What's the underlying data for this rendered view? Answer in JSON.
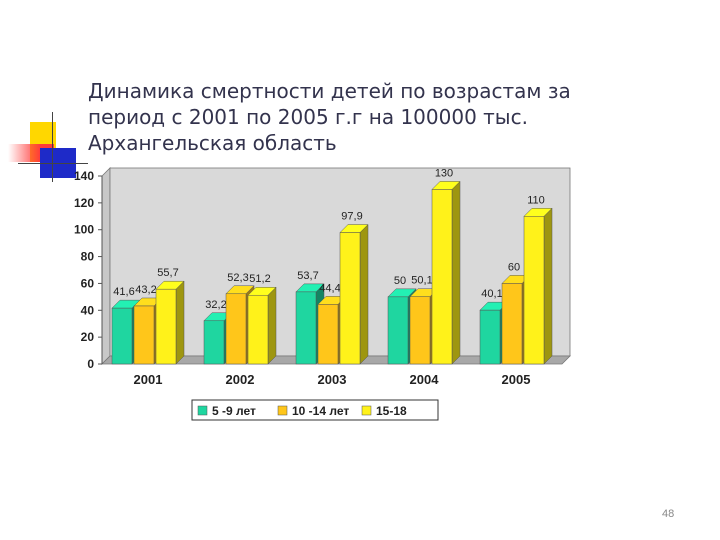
{
  "slide": {
    "title_lines": [
      "Динамика смертности детей по возрастам за",
      "период с 2001 по 2005 г.г на 100000 тыс.",
      "Архангельская область"
    ],
    "page_number": "48"
  },
  "decoration_colors": {
    "yellow": "#FFD700",
    "red": "#FF3B3B",
    "blue": "#1E2AC8",
    "line": "#444444"
  },
  "chart_data": {
    "type": "bar",
    "style": "3d-clustered",
    "title": "",
    "xlabel": "",
    "ylabel": "",
    "categories": [
      "2001",
      "2002",
      "2003",
      "2004",
      "2005"
    ],
    "ylim": [
      0,
      140
    ],
    "yticks": [
      "0",
      "20",
      "40",
      "60",
      "80",
      "100",
      "120",
      "140"
    ],
    "grid": false,
    "legend_position": "bottom",
    "series": [
      {
        "name": "5 -9 лет",
        "color": "#1FD6A0",
        "values": [
          41.6,
          32.2,
          53.7,
          50,
          40.1
        ],
        "labels": [
          "41,6",
          "32,2",
          "53,7",
          "50",
          "40,1"
        ]
      },
      {
        "name": "10 -14 лет",
        "color": "#FFC61A",
        "values": [
          43.2,
          52.3,
          44.4,
          50.1,
          60
        ],
        "labels": [
          "43,2",
          "52,3",
          "44,4",
          "50,1",
          "60"
        ]
      },
      {
        "name": "15-18",
        "color": "#FFF21A",
        "values": [
          55.7,
          51.2,
          97.9,
          130,
          110
        ],
        "labels": [
          "55,7",
          "51,2",
          "97,9",
          "130",
          "110"
        ]
      }
    ]
  }
}
